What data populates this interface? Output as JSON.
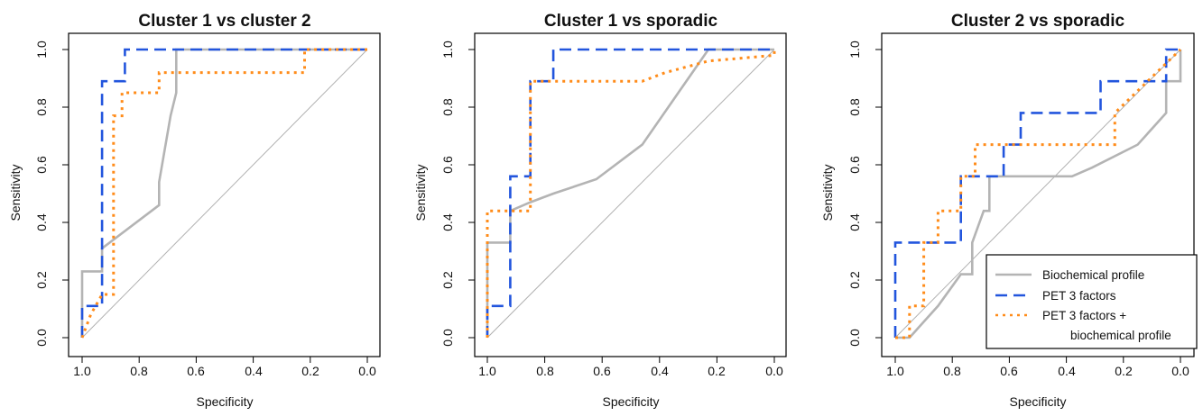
{
  "chart_data": [
    {
      "type": "line",
      "title": "Cluster 1 vs cluster 2",
      "xlabel": "Specificity",
      "ylabel": "Sensitivity",
      "xlim": [
        1.0,
        0.0
      ],
      "ylim": [
        0.0,
        1.0
      ],
      "x_reversed": true,
      "xticks": [
        "1.0",
        "0.8",
        "0.6",
        "0.4",
        "0.2",
        "0.0"
      ],
      "yticks": [
        "0.0",
        "0.2",
        "0.4",
        "0.6",
        "0.8",
        "1.0"
      ],
      "reference_line": [
        [
          1.0,
          0.0
        ],
        [
          0.0,
          1.0
        ]
      ],
      "series": [
        {
          "key": "bio",
          "color": "#b4b4b4",
          "style": "solid",
          "x": [
            1.0,
            1.0,
            0.93,
            0.93,
            0.73,
            0.73,
            0.69,
            0.67,
            0.67,
            0.0
          ],
          "y": [
            0.0,
            0.23,
            0.23,
            0.31,
            0.46,
            0.54,
            0.77,
            0.85,
            1.0,
            1.0
          ]
        },
        {
          "key": "pet",
          "color": "#2255dd",
          "style": "dashed",
          "x": [
            1.0,
            1.0,
            0.93,
            0.93,
            0.85,
            0.85,
            0.0
          ],
          "y": [
            0.0,
            0.11,
            0.11,
            0.89,
            0.89,
            1.0,
            1.0
          ]
        },
        {
          "key": "petbio",
          "color": "#ff8c1a",
          "style": "dotted",
          "x": [
            1.0,
            0.97,
            0.93,
            0.93,
            0.89,
            0.89,
            0.86,
            0.86,
            0.73,
            0.73,
            0.22,
            0.22,
            0.0
          ],
          "y": [
            0.0,
            0.08,
            0.15,
            0.15,
            0.15,
            0.77,
            0.77,
            0.85,
            0.85,
            0.92,
            0.92,
            1.0,
            1.0
          ]
        }
      ]
    },
    {
      "type": "line",
      "title": "Cluster 1 vs sporadic",
      "xlabel": "Specificity",
      "ylabel": "Sensitivity",
      "xlim": [
        1.0,
        0.0
      ],
      "ylim": [
        0.0,
        1.0
      ],
      "x_reversed": true,
      "xticks": [
        "1.0",
        "0.8",
        "0.6",
        "0.4",
        "0.2",
        "0.0"
      ],
      "yticks": [
        "0.0",
        "0.2",
        "0.4",
        "0.6",
        "0.8",
        "1.0"
      ],
      "reference_line": [
        [
          1.0,
          0.0
        ],
        [
          0.0,
          1.0
        ]
      ],
      "series": [
        {
          "key": "bio",
          "color": "#b4b4b4",
          "style": "solid",
          "x": [
            1.0,
            1.0,
            0.92,
            0.92,
            0.85,
            0.77,
            0.62,
            0.46,
            0.23,
            0.0
          ],
          "y": [
            0.0,
            0.33,
            0.33,
            0.44,
            0.47,
            0.5,
            0.55,
            0.67,
            1.0,
            1.0
          ]
        },
        {
          "key": "pet",
          "color": "#2255dd",
          "style": "dashed",
          "x": [
            1.0,
            1.0,
            0.92,
            0.92,
            0.85,
            0.85,
            0.77,
            0.77,
            0.0
          ],
          "y": [
            0.0,
            0.11,
            0.11,
            0.56,
            0.56,
            0.89,
            0.89,
            1.0,
            1.0
          ]
        },
        {
          "key": "petbio",
          "color": "#ff8c1a",
          "style": "dotted",
          "x": [
            1.0,
            1.0,
            0.85,
            0.85,
            0.77,
            0.46,
            0.38,
            0.23,
            0.0,
            0.0
          ],
          "y": [
            0.0,
            0.44,
            0.44,
            0.89,
            0.89,
            0.89,
            0.92,
            0.96,
            0.98,
            1.0
          ]
        }
      ]
    },
    {
      "type": "line",
      "title": "Cluster 2 vs sporadic",
      "xlabel": "Specificity",
      "ylabel": "Sensitivity",
      "xlim": [
        1.0,
        0.0
      ],
      "ylim": [
        0.0,
        1.0
      ],
      "x_reversed": true,
      "xticks": [
        "1.0",
        "0.8",
        "0.6",
        "0.4",
        "0.2",
        "0.0"
      ],
      "yticks": [
        "0.0",
        "0.2",
        "0.4",
        "0.6",
        "0.8",
        "1.0"
      ],
      "reference_line": [
        [
          1.0,
          0.0
        ],
        [
          0.0,
          1.0
        ]
      ],
      "legend_position": "bottom-right",
      "series": [
        {
          "key": "bio",
          "color": "#b4b4b4",
          "style": "solid",
          "x": [
            1.0,
            0.95,
            0.85,
            0.77,
            0.73,
            0.73,
            0.69,
            0.67,
            0.67,
            0.54,
            0.38,
            0.31,
            0.15,
            0.05,
            0.05,
            0.0,
            0.0
          ],
          "y": [
            0.0,
            0.0,
            0.11,
            0.22,
            0.22,
            0.33,
            0.44,
            0.44,
            0.56,
            0.56,
            0.56,
            0.59,
            0.67,
            0.78,
            0.89,
            0.89,
            1.0
          ]
        },
        {
          "key": "pet",
          "color": "#2255dd",
          "style": "dashed",
          "x": [
            1.0,
            1.0,
            0.77,
            0.77,
            0.72,
            0.72,
            0.62,
            0.62,
            0.56,
            0.56,
            0.28,
            0.28,
            0.05,
            0.05,
            0.0,
            0.0
          ],
          "y": [
            0.0,
            0.33,
            0.33,
            0.56,
            0.56,
            0.56,
            0.56,
            0.67,
            0.67,
            0.78,
            0.78,
            0.89,
            0.89,
            1.0,
            1.0,
            1.0
          ]
        },
        {
          "key": "petbio",
          "color": "#ff8c1a",
          "style": "dotted",
          "x": [
            1.0,
            0.95,
            0.95,
            0.9,
            0.9,
            0.85,
            0.85,
            0.77,
            0.77,
            0.72,
            0.72,
            0.23,
            0.23,
            0.0
          ],
          "y": [
            0.0,
            0.0,
            0.11,
            0.11,
            0.33,
            0.33,
            0.44,
            0.44,
            0.56,
            0.56,
            0.67,
            0.67,
            0.78,
            1.0
          ]
        }
      ]
    }
  ],
  "legend": {
    "items": [
      {
        "key": "bio",
        "label": "Biochemical profile"
      },
      {
        "key": "pet",
        "label": "PET 3 factors"
      },
      {
        "key": "petbio",
        "label": "PET 3 factors +",
        "label_line2": "biochemical profile"
      }
    ]
  }
}
